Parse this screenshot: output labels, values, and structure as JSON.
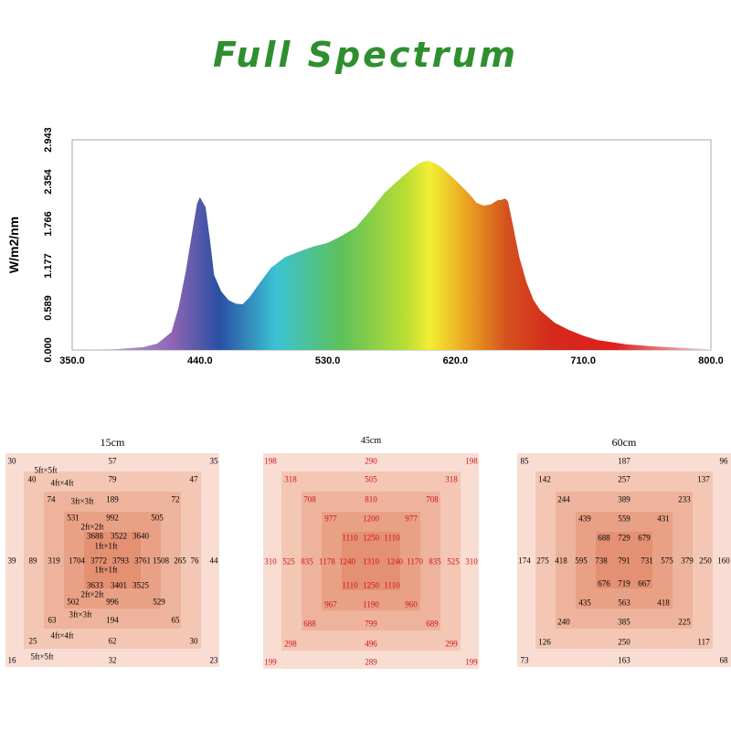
{
  "title": "Full Spectrum",
  "chart_data": [
    {
      "type": "area",
      "title": "",
      "xlabel": "",
      "ylabel": "W/m2/nm",
      "x_ticks": [
        "350.0",
        "440.0",
        "530.0",
        "620.0",
        "710.0",
        "800.0"
      ],
      "y_ticks": [
        "0.000",
        "0.589",
        "1.177",
        "1.766",
        "2.354",
        "2.943"
      ],
      "xlim": [
        350,
        800
      ],
      "ylim": [
        0,
        2.943
      ],
      "grid": false,
      "fill": "rainbow gradient by wavelength",
      "series": [
        {
          "x": [
            350,
            380,
            400,
            410,
            420,
            425,
            430,
            435,
            438,
            440,
            444,
            447,
            450,
            455,
            460,
            465,
            470,
            475,
            480,
            490,
            500,
            510,
            520,
            530,
            540,
            550,
            560,
            570,
            580,
            590,
            595,
            600,
            605,
            610,
            620,
            630,
            635,
            640,
            645,
            650,
            652,
            655,
            657,
            660,
            665,
            670,
            675,
            680,
            690,
            700,
            710,
            720,
            740,
            760,
            780,
            800
          ],
          "y": [
            0.0,
            0.01,
            0.04,
            0.09,
            0.25,
            0.6,
            1.1,
            1.7,
            2.05,
            2.14,
            2.0,
            1.55,
            1.05,
            0.82,
            0.7,
            0.65,
            0.64,
            0.74,
            0.88,
            1.15,
            1.3,
            1.38,
            1.45,
            1.5,
            1.6,
            1.72,
            1.95,
            2.2,
            2.38,
            2.55,
            2.62,
            2.65,
            2.62,
            2.56,
            2.38,
            2.18,
            2.06,
            2.02,
            2.04,
            2.1,
            2.1,
            2.12,
            2.08,
            1.8,
            1.3,
            0.95,
            0.7,
            0.55,
            0.38,
            0.28,
            0.2,
            0.14,
            0.08,
            0.05,
            0.03,
            0.01
          ]
        }
      ]
    },
    {
      "type": "table",
      "title": "15cm",
      "rows": [
        [
          "30",
          "5ft×5ft",
          "",
          "",
          "57",
          "",
          "",
          "35"
        ],
        [
          "",
          "40",
          "4ft×4ft",
          "",
          "79",
          "",
          "47",
          ""
        ],
        [
          "",
          "",
          "74",
          "3ft×3ft",
          "189",
          "72",
          "",
          ""
        ],
        [
          "",
          "",
          "",
          "531",
          "992",
          "505",
          "",
          ""
        ],
        [
          "",
          "",
          "",
          "2ft×2ft",
          "3688",
          "3522",
          "3640",
          ""
        ],
        [
          "",
          "",
          "",
          "1ft×1ft",
          "",
          "",
          "",
          ""
        ],
        [
          "39",
          "89",
          "319",
          "1704",
          "3772",
          "3793",
          "3761",
          "1508",
          "265",
          "76",
          "44"
        ],
        [
          "",
          "",
          "",
          "1ft×1ft",
          "",
          "",
          "",
          ""
        ],
        [
          "",
          "",
          "",
          "3633",
          "3401",
          "3525",
          "",
          ""
        ],
        [
          "",
          "",
          "",
          "2ft×2ft",
          "",
          "",
          "",
          ""
        ],
        [
          "",
          "",
          "",
          "502",
          "996",
          "529",
          "",
          ""
        ],
        [
          "",
          "",
          "63",
          "3ft×3ft",
          "194",
          "65",
          "",
          ""
        ],
        [
          "",
          "25",
          "4ft×4ft",
          "",
          "62",
          "",
          "30",
          ""
        ],
        [
          "16",
          "5ft×5ft",
          "",
          "",
          "32",
          "",
          "",
          "23"
        ]
      ]
    },
    {
      "type": "table",
      "title": "45cm",
      "rows": [
        [
          "198",
          "290",
          "198"
        ],
        [
          "318",
          "505",
          "318"
        ],
        [
          "708",
          "810",
          "708"
        ],
        [
          "977",
          "1200",
          "977"
        ],
        [
          "1110",
          "1250",
          "1110"
        ],
        [
          "310",
          "525",
          "835",
          "1178",
          "1240",
          "1310",
          "1240",
          "1170",
          "835",
          "525",
          "310"
        ],
        [
          "1110",
          "1250",
          "1110"
        ],
        [
          "967",
          "1190",
          "960"
        ],
        [
          "688",
          "799",
          "689"
        ],
        [
          "298",
          "496",
          "299"
        ],
        [
          "199",
          "289",
          "199"
        ]
      ]
    },
    {
      "type": "table",
      "title": "60cm",
      "rows": [
        [
          "85",
          "187",
          "96"
        ],
        [
          "142",
          "257",
          "137"
        ],
        [
          "244",
          "389",
          "233"
        ],
        [
          "439",
          "559",
          "431"
        ],
        [
          "688",
          "729",
          "679"
        ],
        [
          "174",
          "275",
          "418",
          "595",
          "738",
          "791",
          "731",
          "575",
          "379",
          "250",
          "160"
        ],
        [
          "676",
          "719",
          "667"
        ],
        [
          "435",
          "563",
          "418"
        ],
        [
          "240",
          "385",
          "225"
        ],
        [
          "126",
          "250",
          "117"
        ],
        [
          "73",
          "163",
          "68"
        ]
      ]
    }
  ],
  "grid15": {
    "title": "15cm",
    "label_5": "5ft×5ft",
    "label_4": "4ft×4ft",
    "label_3": "3ft×3ft",
    "label_2": "2ft×2ft",
    "label_1": "1ft×1ft",
    "values": [
      "30",
      "57",
      "35",
      "40",
      "79",
      "47",
      "74",
      "189",
      "72",
      "531",
      "992",
      "505",
      "3688",
      "3522",
      "3640",
      "39",
      "89",
      "319",
      "1704",
      "3772",
      "3793",
      "3761",
      "1508",
      "265",
      "76",
      "44",
      "3633",
      "3401",
      "3525",
      "502",
      "996",
      "529",
      "63",
      "194",
      "65",
      "25",
      "62",
      "30",
      "16",
      "32",
      "23"
    ]
  },
  "grid45": {
    "title": "45cm",
    "values": [
      "198",
      "290",
      "198",
      "318",
      "505",
      "318",
      "708",
      "810",
      "708",
      "977",
      "1200",
      "977",
      "1110",
      "1250",
      "1110",
      "310",
      "525",
      "835",
      "1178",
      "1240",
      "1310",
      "1240",
      "1170",
      "835",
      "525",
      "310",
      "1110",
      "1250",
      "1110",
      "967",
      "1190",
      "960",
      "688",
      "799",
      "689",
      "298",
      "496",
      "299",
      "199",
      "289",
      "199"
    ]
  },
  "grid60": {
    "title": "60cm",
    "values": [
      "85",
      "187",
      "96",
      "142",
      "257",
      "137",
      "244",
      "389",
      "233",
      "439",
      "559",
      "431",
      "688",
      "729",
      "679",
      "174",
      "275",
      "418",
      "595",
      "738",
      "791",
      "731",
      "575",
      "379",
      "250",
      "160",
      "676",
      "719",
      "667",
      "435",
      "563",
      "418",
      "240",
      "385",
      "225",
      "126",
      "250",
      "117",
      "73",
      "163",
      "68"
    ]
  },
  "colors": {
    "title": "#2f8f2f",
    "ring5": "#f9ddd2",
    "ring4": "#f3c7b4",
    "ring3": "#eeb39c",
    "ring2": "#e9a185",
    "ring1": "#e49073",
    "red_text": "#d0121b"
  }
}
